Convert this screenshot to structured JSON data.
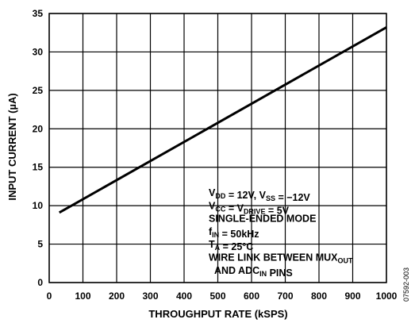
{
  "chart_data": {
    "type": "line",
    "xlabel": "THROUGHPUT RATE (kSPS)",
    "ylabel": "INPUT CURRENT (µA)",
    "xlim": [
      0,
      1000
    ],
    "ylim": [
      0,
      35
    ],
    "x_ticks": [
      0,
      100,
      200,
      300,
      400,
      500,
      600,
      700,
      800,
      900,
      1000
    ],
    "y_ticks": [
      0,
      5,
      10,
      15,
      20,
      25,
      30,
      35
    ],
    "grid": true,
    "series": [
      {
        "x": [
          30,
          1000
        ],
        "y": [
          9.1,
          33.2
        ]
      }
    ],
    "annotation": [
      [
        {
          "t": "V"
        },
        {
          "t": "DD",
          "sub": true
        },
        {
          "t": " = 12V, V"
        },
        {
          "t": "SS",
          "sub": true
        },
        {
          "t": " = −12V"
        }
      ],
      [
        {
          "t": "V"
        },
        {
          "t": "CC",
          "sub": true
        },
        {
          "t": " = V"
        },
        {
          "t": "DRIVE",
          "sub": true
        },
        {
          "t": " = 5V"
        }
      ],
      [
        {
          "t": "SINGLE-ENDED MODE"
        }
      ],
      [
        {
          "t": "f"
        },
        {
          "t": "IN",
          "sub": true
        },
        {
          "t": " = 50kHz"
        }
      ],
      [
        {
          "t": "T"
        },
        {
          "t": "A",
          "sub": true
        },
        {
          "t": " = 25°C"
        }
      ],
      [
        {
          "t": "WIRE LINK BETWEEN MUX"
        },
        {
          "t": "OUT",
          "sub": true
        }
      ],
      [
        {
          "t": "  AND ADC"
        },
        {
          "t": "IN",
          "sub": true
        },
        {
          "t": " PINS"
        }
      ]
    ],
    "figure_id": "07592-003"
  }
}
